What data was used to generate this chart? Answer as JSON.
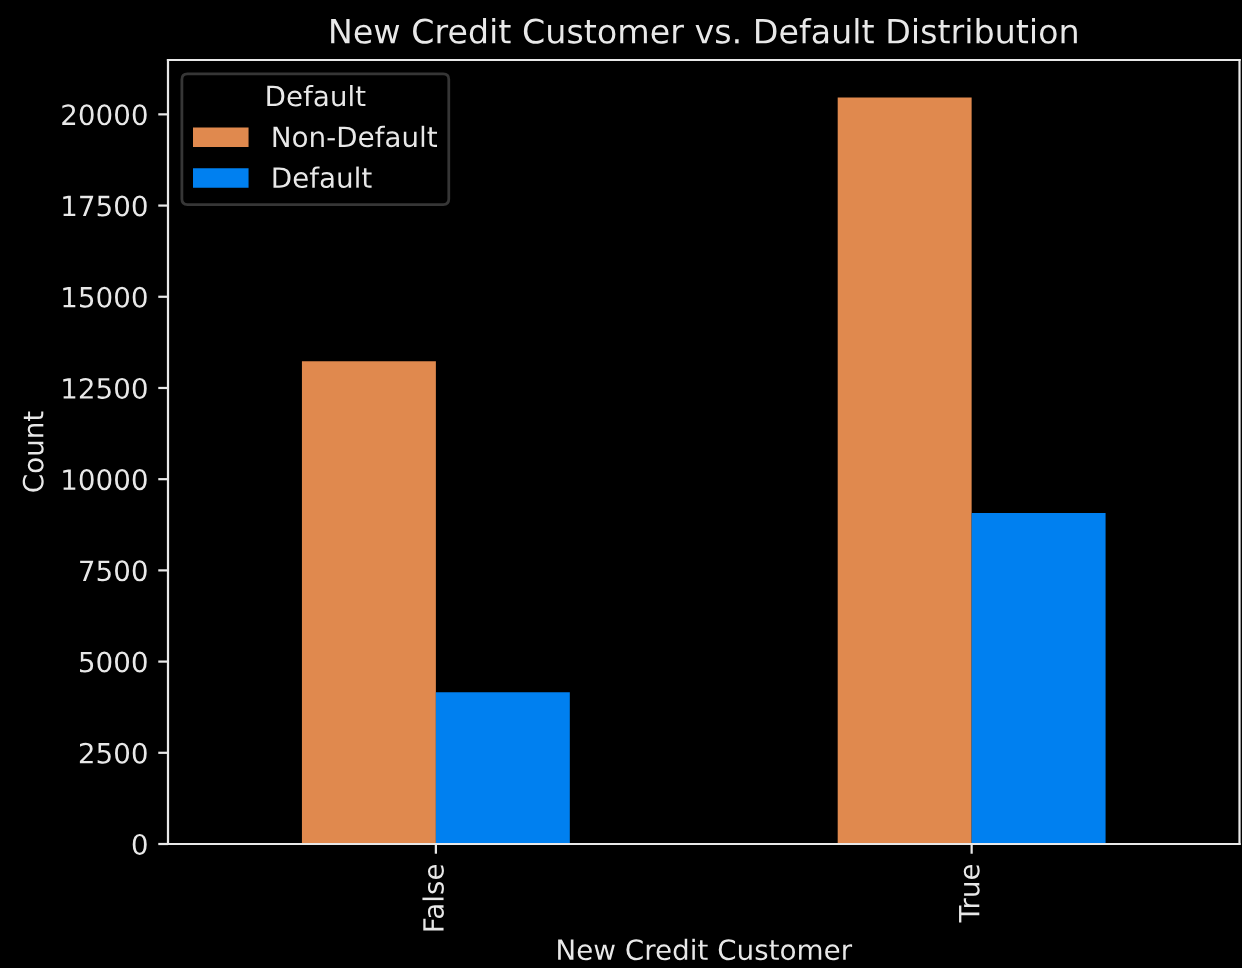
{
  "chart_data": {
    "type": "bar",
    "title": "New Credit Customer vs. Default Distribution",
    "xlabel": "New Credit Customer",
    "ylabel": "Count",
    "categories": [
      "False",
      "True"
    ],
    "series": [
      {
        "name": "Non-Default",
        "color": "#e0894e",
        "values": [
          13230,
          20460
        ]
      },
      {
        "name": "Default",
        "color": "#0080f0",
        "values": [
          4160,
          9070
        ]
      }
    ],
    "legend_title": "Default",
    "legend": "top left",
    "ylim": [
      0,
      21490
    ],
    "yticks": [
      0,
      2500,
      5000,
      7500,
      10000,
      12500,
      15000,
      17500,
      20000
    ]
  }
}
